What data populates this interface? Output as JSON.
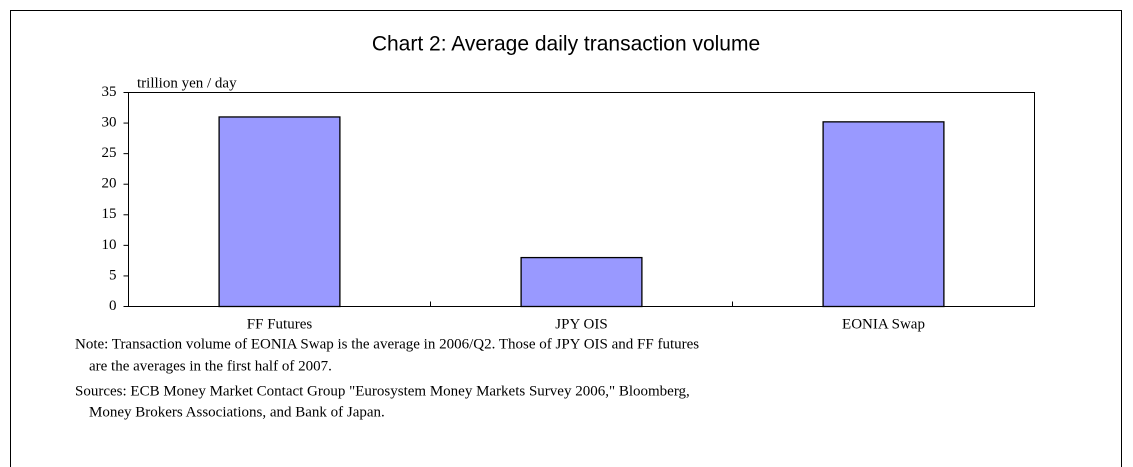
{
  "chart_data": {
    "type": "bar",
    "title": "Chart 2: Average daily transaction volume",
    "y_label": "trillion yen / day",
    "categories": [
      "FF Futures",
      "JPY OIS",
      "EONIA Swap"
    ],
    "values": [
      31,
      8,
      30.2
    ],
    "color": "#9999ff",
    "ylim": [
      0,
      35
    ],
    "yticks": [
      0,
      5,
      10,
      15,
      20,
      25,
      30,
      35
    ],
    "grid": false,
    "notes": [
      "Note: Transaction volume of EONIA Swap is the average in 2006/Q2. Those of JPY OIS and FF futures",
      "are the averages in the first half of 2007.",
      "Sources: ECB Money Market Contact Group \"Eurosystem Money Markets Survey 2006,\" Bloomberg,",
      "Money Brokers Associations, and Bank of Japan."
    ]
  }
}
